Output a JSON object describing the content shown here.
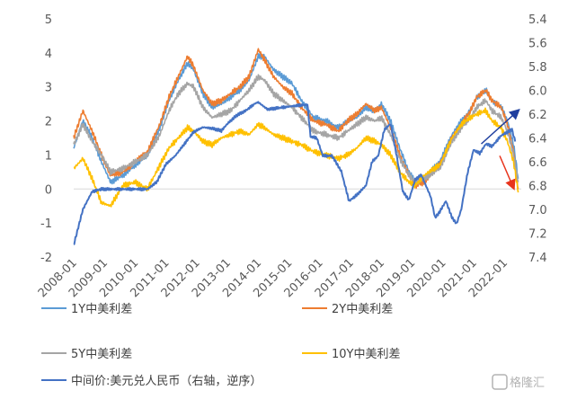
{
  "chart_data": {
    "type": "line",
    "x_ticks": [
      "2008-01",
      "2009-01",
      "2010-01",
      "2011-01",
      "2012-01",
      "2013-01",
      "2014-01",
      "2015-01",
      "2016-01",
      "2017-01",
      "2018-01",
      "2019-01",
      "2020-01",
      "2021-01",
      "2022-01"
    ],
    "y_left": {
      "ticks": [
        "-2",
        "-1",
        "0",
        "1",
        "2",
        "3",
        "4",
        "5"
      ],
      "range": [
        -2,
        5
      ]
    },
    "y_right": {
      "ticks": [
        "5.4",
        "5.6",
        "5.8",
        "6.0",
        "6.2",
        "6.4",
        "6.6",
        "6.8",
        "7.0",
        "7.2",
        "7.4"
      ],
      "range": [
        5.4,
        7.4
      ],
      "inverted": true
    },
    "series": [
      {
        "name": "1Y中美利差",
        "color": "#5b9bd5",
        "axis": "left",
        "points": [
          [
            2008.0,
            1.2
          ],
          [
            2008.3,
            2.0
          ],
          [
            2008.6,
            1.5
          ],
          [
            2008.9,
            0.8
          ],
          [
            2009.2,
            0.2
          ],
          [
            2009.6,
            0.4
          ],
          [
            2010.0,
            0.7
          ],
          [
            2010.4,
            1.0
          ],
          [
            2010.8,
            1.8
          ],
          [
            2011.1,
            2.6
          ],
          [
            2011.4,
            3.2
          ],
          [
            2011.7,
            3.7
          ],
          [
            2011.9,
            3.5
          ],
          [
            2012.2,
            2.8
          ],
          [
            2012.5,
            2.4
          ],
          [
            2012.8,
            2.5
          ],
          [
            2013.1,
            2.7
          ],
          [
            2013.4,
            2.9
          ],
          [
            2013.7,
            3.2
          ],
          [
            2014.0,
            3.9
          ],
          [
            2014.2,
            3.9
          ],
          [
            2014.5,
            3.5
          ],
          [
            2014.8,
            3.3
          ],
          [
            2015.1,
            3.1
          ],
          [
            2015.4,
            2.6
          ],
          [
            2015.8,
            2.1
          ],
          [
            2016.2,
            2.0
          ],
          [
            2016.6,
            1.8
          ],
          [
            2016.9,
            2.0
          ],
          [
            2017.2,
            2.1
          ],
          [
            2017.5,
            2.4
          ],
          [
            2017.8,
            2.3
          ],
          [
            2018.0,
            2.5
          ],
          [
            2018.3,
            2.0
          ],
          [
            2018.6,
            1.2
          ],
          [
            2018.9,
            0.5
          ],
          [
            2019.1,
            0.2
          ],
          [
            2019.4,
            0.3
          ],
          [
            2019.7,
            0.6
          ],
          [
            2019.9,
            0.8
          ],
          [
            2020.1,
            1.2
          ],
          [
            2020.3,
            1.6
          ],
          [
            2020.6,
            2.0
          ],
          [
            2020.9,
            2.3
          ],
          [
            2021.1,
            2.7
          ],
          [
            2021.4,
            2.9
          ],
          [
            2021.6,
            2.6
          ],
          [
            2021.9,
            2.4
          ],
          [
            2022.1,
            2.0
          ],
          [
            2022.3,
            1.3
          ],
          [
            2022.45,
            0.3
          ]
        ]
      },
      {
        "name": "2Y中美利差",
        "color": "#ed7d31",
        "axis": "left",
        "points": [
          [
            2008.0,
            1.5
          ],
          [
            2008.3,
            2.3
          ],
          [
            2008.6,
            1.7
          ],
          [
            2008.9,
            1.0
          ],
          [
            2009.2,
            0.4
          ],
          [
            2009.6,
            0.5
          ],
          [
            2010.0,
            0.8
          ],
          [
            2010.4,
            1.1
          ],
          [
            2010.8,
            1.9
          ],
          [
            2011.1,
            2.7
          ],
          [
            2011.4,
            3.3
          ],
          [
            2011.7,
            3.9
          ],
          [
            2011.9,
            3.6
          ],
          [
            2012.2,
            2.9
          ],
          [
            2012.5,
            2.5
          ],
          [
            2012.8,
            2.6
          ],
          [
            2013.1,
            2.8
          ],
          [
            2013.4,
            3.0
          ],
          [
            2013.7,
            3.3
          ],
          [
            2014.0,
            4.1
          ],
          [
            2014.2,
            3.8
          ],
          [
            2014.5,
            3.3
          ],
          [
            2014.8,
            3.0
          ],
          [
            2015.1,
            2.8
          ],
          [
            2015.4,
            2.4
          ],
          [
            2015.8,
            2.0
          ],
          [
            2016.2,
            1.9
          ],
          [
            2016.6,
            1.7
          ],
          [
            2016.9,
            2.0
          ],
          [
            2017.2,
            2.2
          ],
          [
            2017.5,
            2.5
          ],
          [
            2017.8,
            2.3
          ],
          [
            2018.0,
            2.4
          ],
          [
            2018.3,
            1.8
          ],
          [
            2018.6,
            1.0
          ],
          [
            2018.9,
            0.4
          ],
          [
            2019.1,
            0.1
          ],
          [
            2019.4,
            0.2
          ],
          [
            2019.7,
            0.5
          ],
          [
            2019.9,
            0.7
          ],
          [
            2020.1,
            1.1
          ],
          [
            2020.3,
            1.5
          ],
          [
            2020.6,
            1.9
          ],
          [
            2020.9,
            2.3
          ],
          [
            2021.1,
            2.7
          ],
          [
            2021.4,
            2.9
          ],
          [
            2021.6,
            2.6
          ],
          [
            2021.9,
            2.4
          ],
          [
            2022.1,
            1.9
          ],
          [
            2022.3,
            1.1
          ],
          [
            2022.45,
            0.0
          ]
        ]
      },
      {
        "name": "5Y中美利差",
        "color": "#a5a5a5",
        "axis": "left",
        "points": [
          [
            2008.0,
            1.3
          ],
          [
            2008.3,
            1.9
          ],
          [
            2008.6,
            1.4
          ],
          [
            2008.9,
            1.0
          ],
          [
            2009.2,
            0.5
          ],
          [
            2009.6,
            0.6
          ],
          [
            2010.0,
            0.8
          ],
          [
            2010.4,
            1.0
          ],
          [
            2010.8,
            1.6
          ],
          [
            2011.1,
            2.3
          ],
          [
            2011.4,
            2.8
          ],
          [
            2011.7,
            3.1
          ],
          [
            2011.9,
            3.0
          ],
          [
            2012.2,
            2.4
          ],
          [
            2012.5,
            2.1
          ],
          [
            2012.8,
            2.2
          ],
          [
            2013.1,
            2.3
          ],
          [
            2013.4,
            2.6
          ],
          [
            2013.7,
            2.9
          ],
          [
            2014.0,
            3.3
          ],
          [
            2014.2,
            3.2
          ],
          [
            2014.5,
            2.8
          ],
          [
            2014.8,
            2.6
          ],
          [
            2015.1,
            2.4
          ],
          [
            2015.4,
            2.1
          ],
          [
            2015.8,
            1.7
          ],
          [
            2016.2,
            1.6
          ],
          [
            2016.6,
            1.5
          ],
          [
            2016.9,
            1.7
          ],
          [
            2017.2,
            1.9
          ],
          [
            2017.5,
            2.1
          ],
          [
            2017.8,
            2.0
          ],
          [
            2018.0,
            2.1
          ],
          [
            2018.3,
            1.6
          ],
          [
            2018.6,
            0.9
          ],
          [
            2018.9,
            0.4
          ],
          [
            2019.1,
            0.2
          ],
          [
            2019.4,
            0.3
          ],
          [
            2019.7,
            0.5
          ],
          [
            2019.9,
            0.6
          ],
          [
            2020.1,
            1.0
          ],
          [
            2020.3,
            1.4
          ],
          [
            2020.6,
            1.8
          ],
          [
            2020.9,
            2.1
          ],
          [
            2021.1,
            2.4
          ],
          [
            2021.4,
            2.6
          ],
          [
            2021.6,
            2.3
          ],
          [
            2021.9,
            2.1
          ],
          [
            2022.1,
            1.7
          ],
          [
            2022.3,
            1.0
          ],
          [
            2022.45,
            0.2
          ]
        ]
      },
      {
        "name": "10Y中美利差",
        "color": "#ffc000",
        "axis": "left",
        "points": [
          [
            2008.0,
            0.6
          ],
          [
            2008.3,
            0.9
          ],
          [
            2008.6,
            0.3
          ],
          [
            2008.9,
            -0.4
          ],
          [
            2009.2,
            -0.5
          ],
          [
            2009.6,
            0.1
          ],
          [
            2010.0,
            0.2
          ],
          [
            2010.4,
            0.0
          ],
          [
            2010.8,
            0.7
          ],
          [
            2011.1,
            1.2
          ],
          [
            2011.4,
            1.5
          ],
          [
            2011.7,
            1.8
          ],
          [
            2011.9,
            1.7
          ],
          [
            2012.2,
            1.4
          ],
          [
            2012.5,
            1.3
          ],
          [
            2012.8,
            1.5
          ],
          [
            2013.1,
            1.6
          ],
          [
            2013.4,
            1.7
          ],
          [
            2013.7,
            1.6
          ],
          [
            2014.0,
            1.9
          ],
          [
            2014.2,
            1.8
          ],
          [
            2014.5,
            1.6
          ],
          [
            2014.8,
            1.5
          ],
          [
            2015.1,
            1.4
          ],
          [
            2015.4,
            1.3
          ],
          [
            2015.8,
            1.1
          ],
          [
            2016.2,
            1.0
          ],
          [
            2016.6,
            0.9
          ],
          [
            2016.9,
            1.0
          ],
          [
            2017.2,
            1.2
          ],
          [
            2017.5,
            1.5
          ],
          [
            2017.8,
            1.4
          ],
          [
            2018.0,
            1.3
          ],
          [
            2018.3,
            1.0
          ],
          [
            2018.6,
            0.5
          ],
          [
            2018.9,
            0.2
          ],
          [
            2019.1,
            0.1
          ],
          [
            2019.4,
            0.4
          ],
          [
            2019.7,
            0.6
          ],
          [
            2019.9,
            0.7
          ],
          [
            2020.1,
            1.1
          ],
          [
            2020.3,
            1.5
          ],
          [
            2020.6,
            1.9
          ],
          [
            2020.9,
            2.1
          ],
          [
            2021.1,
            2.2
          ],
          [
            2021.4,
            2.3
          ],
          [
            2021.6,
            2.0
          ],
          [
            2021.9,
            1.8
          ],
          [
            2022.1,
            1.4
          ],
          [
            2022.3,
            0.8
          ],
          [
            2022.45,
            -0.1
          ]
        ]
      },
      {
        "name": "中间价:美元兑人民币（右轴，逆序）",
        "color": "#4472c4",
        "axis": "right",
        "points": [
          [
            2008.0,
            7.3
          ],
          [
            2008.3,
            7.0
          ],
          [
            2008.6,
            6.85
          ],
          [
            2008.9,
            6.83
          ],
          [
            2009.2,
            6.83
          ],
          [
            2009.6,
            6.83
          ],
          [
            2010.0,
            6.83
          ],
          [
            2010.4,
            6.83
          ],
          [
            2010.7,
            6.77
          ],
          [
            2011.0,
            6.62
          ],
          [
            2011.3,
            6.55
          ],
          [
            2011.6,
            6.45
          ],
          [
            2011.9,
            6.35
          ],
          [
            2012.2,
            6.31
          ],
          [
            2012.5,
            6.32
          ],
          [
            2012.8,
            6.34
          ],
          [
            2013.0,
            6.28
          ],
          [
            2013.3,
            6.21
          ],
          [
            2013.6,
            6.17
          ],
          [
            2013.9,
            6.11
          ],
          [
            2014.0,
            6.1
          ],
          [
            2014.3,
            6.16
          ],
          [
            2014.6,
            6.15
          ],
          [
            2014.9,
            6.14
          ],
          [
            2015.2,
            6.13
          ],
          [
            2015.6,
            6.12
          ],
          [
            2015.7,
            6.39
          ],
          [
            2015.9,
            6.4
          ],
          [
            2016.1,
            6.55
          ],
          [
            2016.4,
            6.55
          ],
          [
            2016.7,
            6.68
          ],
          [
            2016.95,
            6.93
          ],
          [
            2017.2,
            6.88
          ],
          [
            2017.5,
            6.8
          ],
          [
            2017.7,
            6.6
          ],
          [
            2017.9,
            6.55
          ],
          [
            2018.1,
            6.33
          ],
          [
            2018.3,
            6.28
          ],
          [
            2018.5,
            6.55
          ],
          [
            2018.7,
            6.85
          ],
          [
            2018.9,
            6.92
          ],
          [
            2019.1,
            6.75
          ],
          [
            2019.3,
            6.71
          ],
          [
            2019.6,
            6.89
          ],
          [
            2019.75,
            7.07
          ],
          [
            2019.9,
            7.02
          ],
          [
            2020.1,
            6.93
          ],
          [
            2020.3,
            7.07
          ],
          [
            2020.45,
            7.12
          ],
          [
            2020.6,
            7.0
          ],
          [
            2020.8,
            6.7
          ],
          [
            2021.0,
            6.5
          ],
          [
            2021.2,
            6.53
          ],
          [
            2021.4,
            6.45
          ],
          [
            2021.6,
            6.47
          ],
          [
            2021.9,
            6.38
          ],
          [
            2022.1,
            6.35
          ],
          [
            2022.25,
            6.33
          ],
          [
            2022.35,
            6.43
          ]
        ]
      }
    ],
    "annotations": [
      {
        "type": "arrow",
        "color": "#1f3f9f",
        "from": [
          2021.25,
          6.45
        ],
        "to": [
          2022.45,
          6.17
        ],
        "axis": "right"
      },
      {
        "type": "arrow",
        "color": "#e8341c",
        "from": [
          2021.85,
          6.55
        ],
        "to": [
          2022.3,
          6.82
        ],
        "axis": "right"
      }
    ],
    "grid": false,
    "legend_position": "bottom"
  },
  "watermark": "格隆汇"
}
